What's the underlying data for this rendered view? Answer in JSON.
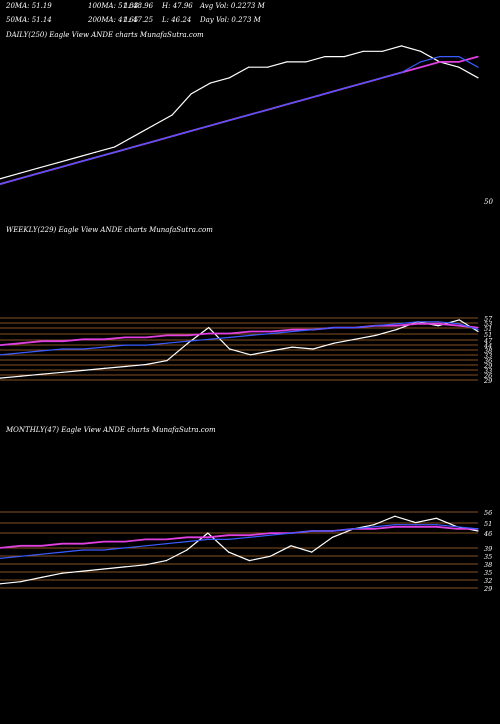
{
  "colors": {
    "background": "#000000",
    "price": "#ffffff",
    "ma_short": "#3a5cff",
    "ma_long": "#e040e0",
    "ma_mid": "#a9a9a9",
    "ma_brown": "#8b4a1e",
    "grid_line": "#b06a2c",
    "label_text": "#ffffff"
  },
  "daily": {
    "stats_row1": [
      "20MA: 51.19",
      "100MA: 51.83",
      "1: 48.96",
      "H: 47.96",
      "Avg Vol: 0.2273 M"
    ],
    "stats_row2": [
      "50MA: 51.14",
      "200MA: 41.65",
      "1: 47.25",
      "L: 46.24",
      "Day Vol: 0.273 M"
    ],
    "caption": "DAILY(250) Eagle   View  ANDE charts MunafaSutra.com",
    "price_label": "50"
  },
  "weekly": {
    "caption": "WEEKLY(229) Eagle   View  ANDE charts MunafaSutra.com",
    "price_labels": [
      "57",
      "53",
      "51",
      "51",
      "47",
      "44",
      "38",
      "33",
      "36",
      "29",
      "33",
      "26",
      "29"
    ]
  },
  "monthly": {
    "caption": "MONTHLY(47) Eagle   View  ANDE charts MunafaSutra.com",
    "price_labels": [
      "56",
      "51",
      "46",
      "39",
      "35",
      "38",
      "35",
      "32",
      "29"
    ]
  },
  "chart_data": [
    {
      "type": "line",
      "panel": "daily",
      "title": "DAILY(250) Eagle View ANDE charts MunafaSutra.com",
      "x": [
        0,
        10,
        20,
        30,
        40,
        50,
        60,
        70,
        80,
        90,
        100,
        110,
        120,
        130,
        140,
        150,
        160,
        170,
        180,
        190,
        200,
        210,
        220,
        230,
        240,
        250
      ],
      "series": [
        {
          "key": "price",
          "values": [
            28,
            29,
            30,
            31,
            32,
            33,
            34,
            36,
            38,
            40,
            44,
            46,
            47,
            49,
            49,
            50,
            50,
            51,
            51,
            52,
            52,
            53,
            52,
            50,
            49,
            47
          ]
        },
        {
          "key": "ma_long",
          "values": [
            27,
            28,
            29,
            30,
            31,
            32,
            33,
            34,
            35,
            36,
            37,
            38,
            39,
            40,
            41,
            42,
            43,
            44,
            45,
            46,
            47,
            48,
            49,
            50,
            50,
            51
          ]
        },
        {
          "key": "ma_short",
          "values": [
            27,
            28,
            29,
            30,
            31,
            32,
            33,
            34,
            35,
            36,
            37,
            38,
            39,
            40,
            41,
            42,
            43,
            44,
            45,
            46,
            47,
            48,
            50,
            51,
            51,
            49
          ]
        }
      ]
    },
    {
      "type": "line",
      "panel": "weekly",
      "title": "WEEKLY(229) Eagle View ANDE charts MunafaSutra.com",
      "x": [
        0,
        10,
        20,
        30,
        40,
        50,
        60,
        70,
        80,
        90,
        100,
        110,
        120,
        130,
        140,
        150,
        160,
        170,
        180,
        190,
        200,
        210,
        220,
        229
      ],
      "series": [
        {
          "key": "price",
          "values": [
            26,
            27,
            28,
            29,
            30,
            31,
            32,
            33,
            35,
            44,
            52,
            41,
            38,
            40,
            42,
            41,
            44,
            46,
            48,
            51,
            55,
            53,
            56,
            50
          ]
        },
        {
          "key": "ma_long",
          "values": [
            43,
            44,
            45,
            45,
            46,
            46,
            47,
            47,
            48,
            48,
            49,
            49,
            50,
            50,
            51,
            51,
            52,
            52,
            53,
            53,
            54,
            54,
            53,
            52
          ]
        },
        {
          "key": "ma_short",
          "values": [
            38,
            39,
            40,
            41,
            41,
            42,
            43,
            43,
            44,
            45,
            46,
            47,
            48,
            49,
            50,
            51,
            52,
            52,
            53,
            54,
            55,
            55,
            54,
            51
          ]
        }
      ]
    },
    {
      "type": "line",
      "panel": "monthly",
      "title": "MONTHLY(47) Eagle View ANDE charts MunafaSutra.com",
      "x": [
        0,
        2,
        4,
        6,
        8,
        10,
        12,
        14,
        16,
        18,
        20,
        22,
        24,
        26,
        28,
        30,
        32,
        34,
        36,
        38,
        40,
        42,
        44,
        46
      ],
      "series": [
        {
          "key": "price",
          "values": [
            24,
            25,
            27,
            29,
            30,
            31,
            32,
            33,
            35,
            40,
            48,
            39,
            35,
            37,
            42,
            39,
            46,
            50,
            52,
            56,
            53,
            55,
            51,
            49
          ]
        },
        {
          "key": "ma_long",
          "values": [
            41,
            42,
            42,
            43,
            43,
            44,
            44,
            45,
            45,
            46,
            46,
            47,
            47,
            48,
            48,
            49,
            49,
            50,
            50,
            51,
            51,
            51,
            50,
            50
          ]
        },
        {
          "key": "ma_short",
          "values": [
            36,
            37,
            38,
            39,
            40,
            40,
            41,
            42,
            43,
            44,
            45,
            45,
            46,
            47,
            48,
            49,
            49,
            50,
            51,
            52,
            52,
            52,
            51,
            50
          ]
        }
      ]
    }
  ]
}
